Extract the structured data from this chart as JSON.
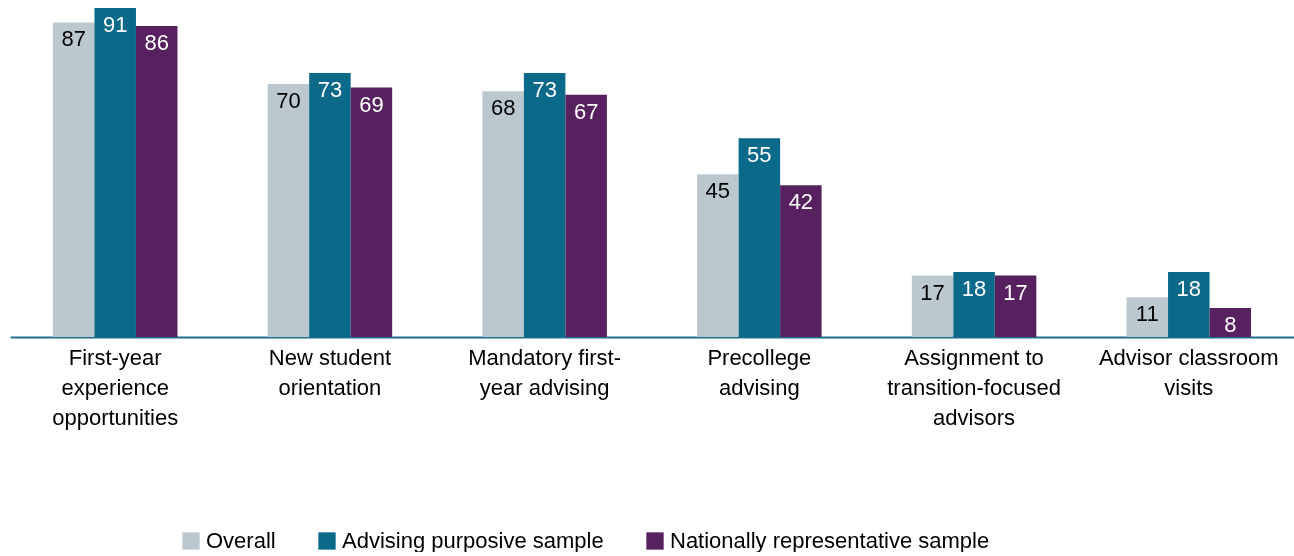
{
  "chart_data": {
    "type": "bar",
    "categories": [
      "First-year experience opportunities",
      "New student orientation",
      "Mandatory first-year advising",
      "Precollege advising",
      "Assignment to transition-focused advisors",
      "Advisor classroom visits"
    ],
    "series": [
      {
        "name": "Overall",
        "color": "#bcc8d0",
        "values": [
          87,
          70,
          68,
          45,
          17,
          11
        ]
      },
      {
        "name": "Advising purposive sample",
        "color": "#0b6a8a",
        "values": [
          91,
          73,
          73,
          55,
          18,
          18
        ]
      },
      {
        "name": "Nationally representative sample",
        "color": "#57215f",
        "values": [
          86,
          69,
          67,
          42,
          17,
          8
        ]
      }
    ],
    "data_labels": true,
    "legend": "bottom",
    "grid": false,
    "tick_labels": "x"
  }
}
